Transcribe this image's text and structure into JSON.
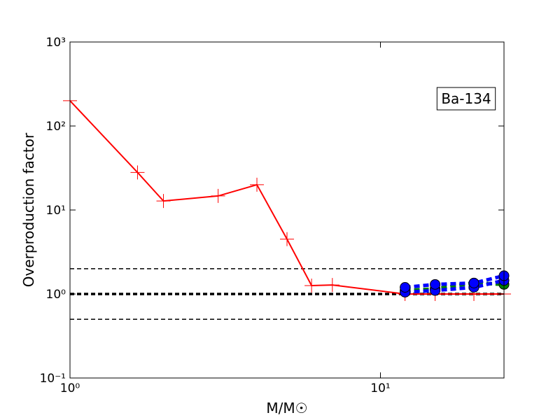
{
  "chart_data": {
    "type": "line",
    "xlabel": "M/M☉",
    "ylabel": "Overproduction factor",
    "annotation": "Ba-134",
    "xscale": "log",
    "yscale": "log",
    "xlim": [
      1,
      25
    ],
    "ylim": [
      0.1,
      1000
    ],
    "xticks": [
      {
        "value": 1,
        "label": "10⁰"
      },
      {
        "value": 10,
        "label": "10¹"
      }
    ],
    "yticks": [
      {
        "value": 0.1,
        "label": "10⁻¹"
      },
      {
        "value": 1,
        "label": "10⁰"
      },
      {
        "value": 10,
        "label": "10¹"
      },
      {
        "value": 100,
        "label": "10²"
      },
      {
        "value": 1000,
        "label": "10³"
      }
    ],
    "reference_lines": [
      {
        "value": 2,
        "color": "#000000",
        "linewidth": 1.5
      },
      {
        "value": 1,
        "color": "#000000",
        "linewidth": 3.5
      },
      {
        "value": 0.5,
        "color": "#000000",
        "linewidth": 1.5
      }
    ],
    "series": [
      {
        "color": "#ff0000",
        "linestyle": "solid",
        "marker": "plus",
        "x": [
          1,
          1.65,
          2,
          3,
          4,
          5,
          6,
          7,
          12,
          15,
          20,
          25
        ],
        "values": [
          200,
          28,
          12.8,
          14.7,
          20,
          4.5,
          1.26,
          1.28,
          1.0,
          1.0,
          1.0,
          1.0
        ]
      },
      {
        "color": "#008000",
        "linestyle": "dashed",
        "marker": "circle",
        "x": [
          12,
          15,
          20,
          25
        ],
        "values": [
          1.1,
          1.15,
          1.35,
          1.3
        ]
      },
      {
        "color": "#0000ff",
        "linestyle": "dashed",
        "marker": "circle",
        "x": [
          12,
          15,
          20,
          25
        ],
        "values": [
          1.05,
          1.1,
          1.2,
          1.45
        ]
      },
      {
        "color": "#0000ff",
        "linestyle": "dashed",
        "marker": "circle",
        "x": [
          12,
          15,
          20,
          25
        ],
        "values": [
          1.2,
          1.3,
          1.35,
          1.65
        ]
      }
    ]
  }
}
